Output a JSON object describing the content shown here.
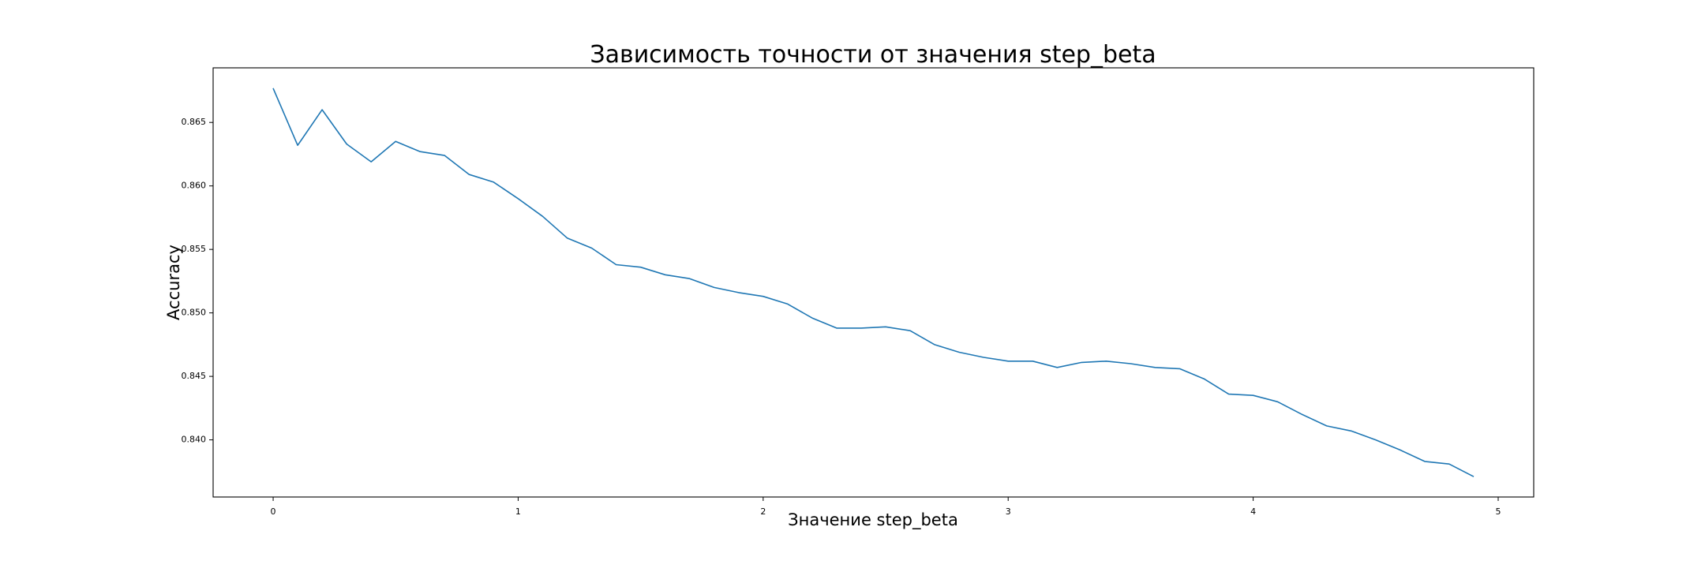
{
  "chart_data": {
    "type": "line",
    "title": "Зависимость точности от значения step_beta",
    "xlabel": "Значение step_beta",
    "ylabel": "Accuracy",
    "xlim": [
      -0.245,
      5.145
    ],
    "ylim": [
      0.8355,
      0.8693
    ],
    "xticks": [
      0,
      1,
      2,
      3,
      4,
      5
    ],
    "xtick_labels": [
      "0",
      "1",
      "2",
      "3",
      "4",
      "5"
    ],
    "yticks": [
      0.84,
      0.845,
      0.85,
      0.855,
      0.86,
      0.865
    ],
    "ytick_labels": [
      "0.840",
      "0.845",
      "0.850",
      "0.855",
      "0.860",
      "0.865"
    ],
    "grid": false,
    "color": "#1f77b4",
    "series": [
      {
        "x": [
          0,
          0.1,
          0.2,
          0.3,
          0.4,
          0.5,
          0.6,
          0.7,
          0.8,
          0.9,
          1.0,
          1.1,
          1.2,
          1.3,
          1.4,
          1.5,
          1.6,
          1.7,
          1.8,
          1.9,
          2.0,
          2.1,
          2.2,
          2.3,
          2.4,
          2.5,
          2.6,
          2.7,
          2.8,
          2.9,
          3.0,
          3.1,
          3.2,
          3.3,
          3.4,
          3.5,
          3.6,
          3.7,
          3.8,
          3.9,
          4.0,
          4.1,
          4.2,
          4.3,
          4.4,
          4.5,
          4.6,
          4.7,
          4.8,
          4.9
        ],
        "values": [
          0.8677,
          0.8632,
          0.866,
          0.8633,
          0.8619,
          0.8635,
          0.8627,
          0.8624,
          0.8609,
          0.8603,
          0.859,
          0.8576,
          0.8559,
          0.8551,
          0.8538,
          0.8536,
          0.853,
          0.8527,
          0.852,
          0.8516,
          0.8513,
          0.8507,
          0.8496,
          0.8488,
          0.8488,
          0.8489,
          0.8486,
          0.8475,
          0.8469,
          0.8465,
          0.8462,
          0.8462,
          0.8457,
          0.8461,
          0.8462,
          0.846,
          0.8457,
          0.8456,
          0.8448,
          0.8436,
          0.8435,
          0.843,
          0.842,
          0.8411,
          0.8407,
          0.84,
          0.8392,
          0.8383,
          0.8381,
          0.8371
        ]
      }
    ]
  }
}
